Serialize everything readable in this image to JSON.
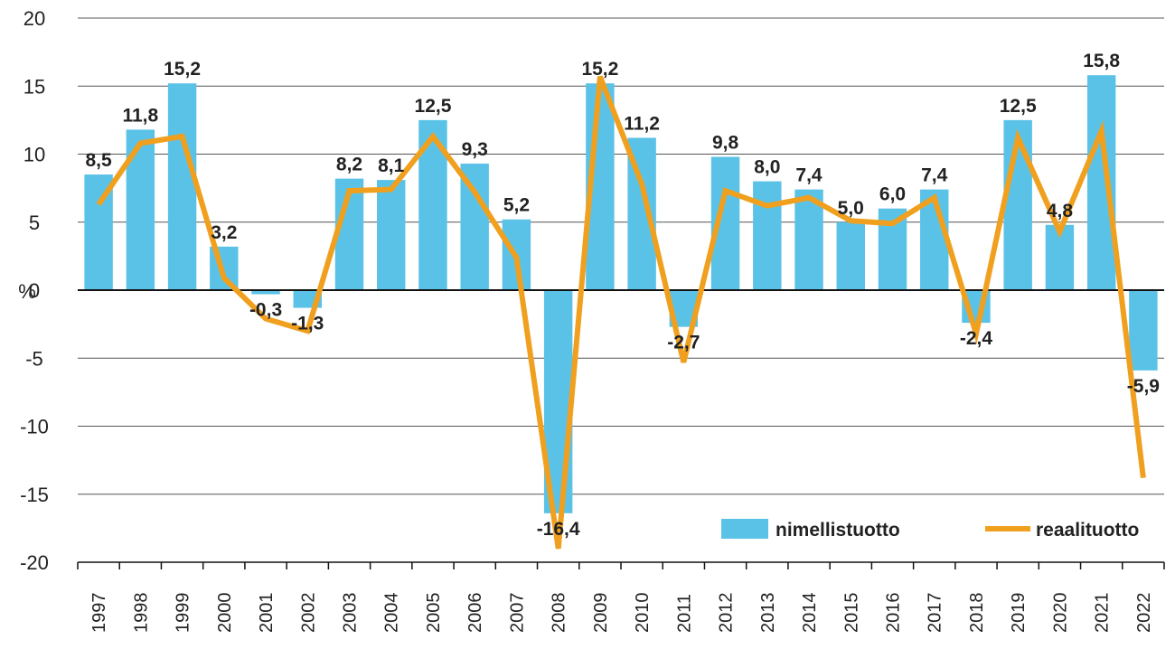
{
  "chart_data": {
    "type": "bar",
    "categories": [
      "1997",
      "1998",
      "1999",
      "2000",
      "2001",
      "2002",
      "2003",
      "2004",
      "2005",
      "2006",
      "2007",
      "2008",
      "2009",
      "2010",
      "2011",
      "2012",
      "2013",
      "2014",
      "2015",
      "2016",
      "2017",
      "2018",
      "2019",
      "2020",
      "2021",
      "2022"
    ],
    "series": [
      {
        "name": "nimellistuotto",
        "type": "bar",
        "color": "#5bc2e7",
        "values": [
          8.5,
          11.8,
          15.2,
          3.2,
          -0.3,
          -1.3,
          8.2,
          8.1,
          12.5,
          9.3,
          5.2,
          -16.4,
          15.2,
          11.2,
          -2.7,
          9.8,
          8.0,
          7.4,
          5.0,
          6.0,
          7.4,
          -2.4,
          12.5,
          4.8,
          15.8,
          -5.9
        ],
        "labels": [
          "8,5",
          "11,8",
          "15,2",
          "3,2",
          "-0,3",
          "-1,3",
          "8,2",
          "8,1",
          "12,5",
          "9,3",
          "5,2",
          "-16,4",
          "15,2",
          "11,2",
          "-2,7",
          "9,8",
          "8,0",
          "7,4",
          "5,0",
          "6,0",
          "7,4",
          "-2,4",
          "12,5",
          "4,8",
          "15,8",
          "-5,9"
        ]
      },
      {
        "name": "reaalituotto",
        "type": "line",
        "color": "#f0a01e",
        "values": [
          6.3,
          10.8,
          11.3,
          0.9,
          -2.1,
          -3.0,
          7.3,
          7.4,
          11.3,
          7.2,
          2.4,
          -19.0,
          15.7,
          7.8,
          -5.3,
          7.3,
          6.2,
          6.8,
          5.1,
          4.9,
          6.8,
          -3.2,
          11.2,
          4.3,
          11.7,
          -13.8
        ]
      }
    ],
    "y_unit": "%",
    "ylim": [
      -20,
      20
    ],
    "yticks": [
      20,
      15,
      10,
      5,
      0,
      -5,
      -10,
      -15,
      -20
    ],
    "ytick_labels": [
      "20",
      "15",
      "10",
      "5",
      "0",
      "-5",
      "-10",
      "-15",
      "-20"
    ],
    "grid": true,
    "legend_position": "bottom-right"
  }
}
